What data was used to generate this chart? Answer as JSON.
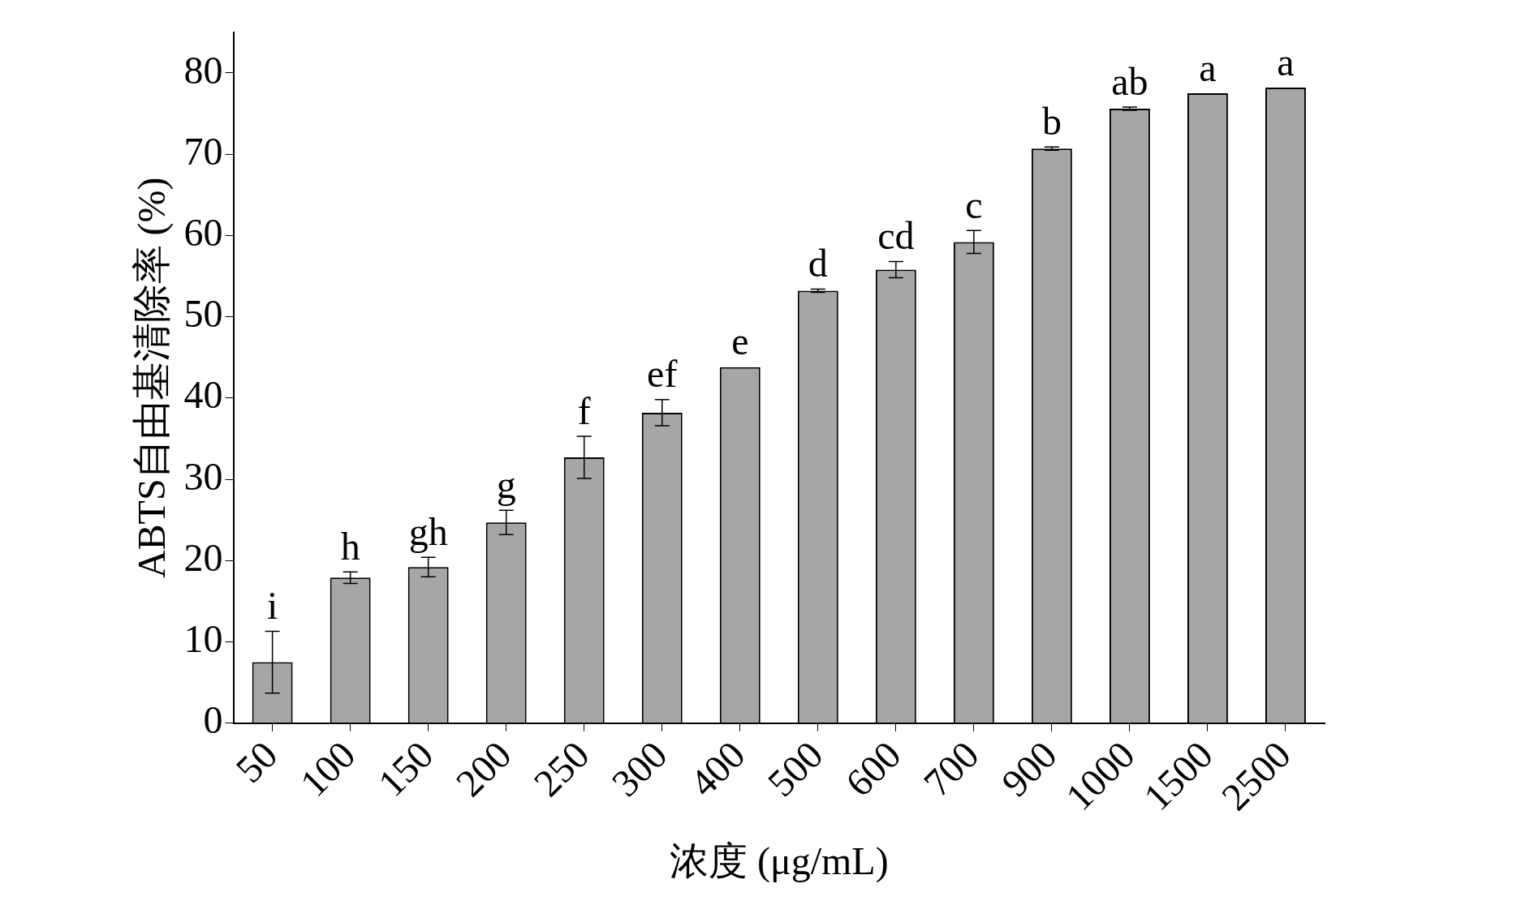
{
  "chart_data": {
    "type": "bar",
    "xlabel": "浓度 (μg/mL)",
    "ylabel": "ABTS自由基清除率 (%)",
    "categories": [
      "50",
      "100",
      "150",
      "200",
      "250",
      "300",
      "400",
      "500",
      "600",
      "700",
      "900",
      "1000",
      "1500",
      "2500"
    ],
    "series": [
      {
        "color": "#a6a6a6",
        "values": [
          7.5,
          17.9,
          19.2,
          24.7,
          32.7,
          38.2,
          43.8,
          53.2,
          55.8,
          59.2,
          70.7,
          75.6,
          77.5,
          78.2
        ],
        "errors": [
          3.8,
          0.7,
          1.2,
          1.5,
          2.6,
          1.6,
          null,
          0.2,
          1.0,
          1.4,
          0.2,
          0.2,
          null,
          null
        ]
      }
    ],
    "ylim": [
      0,
      85
    ],
    "yticks": [
      0,
      10,
      20,
      30,
      40,
      50,
      60,
      70,
      80
    ],
    "grid": false,
    "legend": false,
    "annotations": [
      {
        "text": "i",
        "x": "50",
        "y": 11.3
      },
      {
        "text": "h",
        "x": "100",
        "y": 18.6
      },
      {
        "text": "gh",
        "x": "150",
        "y": 20.4
      },
      {
        "text": "g",
        "x": "200",
        "y": 26.2
      },
      {
        "text": "f",
        "x": "250",
        "y": 35.3
      },
      {
        "text": "ef",
        "x": "300",
        "y": 39.8
      },
      {
        "text": "e",
        "x": "400",
        "y": 43.8
      },
      {
        "text": "d",
        "x": "500",
        "y": 53.4
      },
      {
        "text": "cd",
        "x": "600",
        "y": 56.8
      },
      {
        "text": "c",
        "x": "700",
        "y": 60.6
      },
      {
        "text": "b",
        "x": "900",
        "y": 70.9
      },
      {
        "text": "ab",
        "x": "1000",
        "y": 75.8
      },
      {
        "text": "a",
        "x": "1500",
        "y": 77.5
      },
      {
        "text": "a",
        "x": "2500",
        "y": 78.2
      }
    ]
  }
}
